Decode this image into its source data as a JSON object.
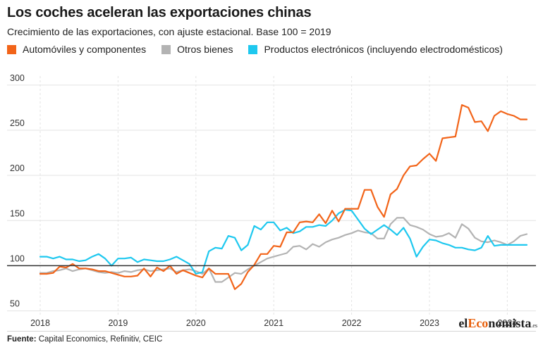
{
  "header": {
    "title": "Los coches aceleran las exportaciones chinas",
    "subtitle": "Crecimiento de las exportaciones, con ajuste estacional. Base 100 = 2019"
  },
  "footer": {
    "source_label": "Fuente:",
    "source_text": "Capital Economics, Refinitiv, CEIC"
  },
  "brand": {
    "prefix": "el",
    "accent": "Eco",
    "suffix": "nomista",
    "tld": ".es"
  },
  "chart_data": {
    "type": "line",
    "x_start": "2018-01",
    "x_ticks": [
      "2018",
      "2019",
      "2020",
      "2021",
      "2022",
      "2023",
      "2024"
    ],
    "y_ticks": [
      50,
      100,
      150,
      200,
      250,
      300
    ],
    "ylim": [
      45,
      310
    ],
    "reference_line": 100,
    "grid": true,
    "legend_position": "top-left",
    "series": [
      {
        "name": "Automóviles y componentes",
        "color": "#f26419",
        "values": [
          91,
          91,
          92,
          99,
          98,
          102,
          97,
          97,
          96,
          94,
          94,
          92,
          90,
          88,
          88,
          89,
          97,
          88,
          98,
          94,
          100,
          91,
          95,
          92,
          89,
          87,
          97,
          91,
          91,
          91,
          74,
          80,
          93,
          101,
          113,
          113,
          122,
          121,
          137,
          137,
          148,
          149,
          148,
          157,
          147,
          161,
          149,
          163,
          163,
          163,
          184,
          184,
          165,
          154,
          179,
          185,
          200,
          210,
          211,
          218,
          224,
          216,
          241,
          242,
          243,
          278,
          275,
          259,
          260,
          249,
          266,
          271,
          268,
          266,
          262,
          262
        ]
      },
      {
        "name": "Otros bienes",
        "color": "#b3b3b3",
        "values": [
          92,
          92,
          94,
          95,
          97,
          94,
          96,
          97,
          95,
          93,
          92,
          93,
          92,
          94,
          93,
          95,
          96,
          94,
          95,
          96,
          97,
          93,
          95,
          96,
          94,
          91,
          97,
          82,
          82,
          87,
          92,
          91,
          96,
          100,
          104,
          108,
          110,
          112,
          114,
          121,
          122,
          118,
          124,
          121,
          126,
          129,
          131,
          134,
          136,
          139,
          137,
          136,
          130,
          130,
          146,
          153,
          153,
          145,
          143,
          140,
          135,
          132,
          133,
          136,
          131,
          146,
          141,
          131,
          127,
          126,
          128,
          126,
          123,
          127,
          133,
          135
        ]
      },
      {
        "name": "Productos electrónicos (incluyendo electrodomésticos)",
        "color": "#1ec8ef",
        "values": [
          110,
          110,
          108,
          110,
          107,
          107,
          105,
          106,
          110,
          113,
          108,
          100,
          108,
          108,
          109,
          104,
          107,
          106,
          105,
          105,
          107,
          110,
          106,
          102,
          91,
          93,
          116,
          120,
          119,
          133,
          131,
          117,
          123,
          144,
          140,
          148,
          148,
          139,
          142,
          136,
          138,
          143,
          143,
          145,
          144,
          150,
          158,
          162,
          161,
          151,
          141,
          135,
          140,
          145,
          140,
          134,
          142,
          130,
          110,
          121,
          129,
          128,
          125,
          123,
          120,
          120,
          118,
          117,
          120,
          133,
          122,
          123,
          123,
          123,
          123,
          123
        ]
      }
    ]
  }
}
